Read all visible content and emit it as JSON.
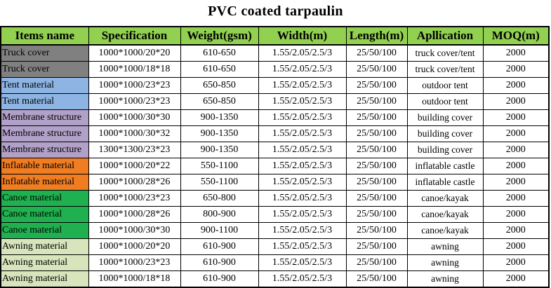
{
  "title": "PVC coated tarpaulin",
  "columns": [
    "Items name",
    "Specification",
    "Weight(gsm)",
    "Width(m)",
    "Length(m)",
    "Apllication",
    "MOQ(m)"
  ],
  "category_colors": {
    "truck": "#808080",
    "tent": "#8db4e2",
    "membrane": "#b1a0c7",
    "inflatable": "#f07d22",
    "canoe": "#1fb14f",
    "awning": "#d8e4bc",
    "header": "#92d050"
  },
  "rows": [
    {
      "item": "Truck cover",
      "category": "truck",
      "spec": "1000*1000/20*20",
      "weight": "610-650",
      "width": "1.55/2.05/2.5/3",
      "length": "25/50/100",
      "application": "truck cover/tent",
      "moq": "2000"
    },
    {
      "item": "Truck cover",
      "category": "truck",
      "spec": "1000*1000/18*18",
      "weight": "610-650",
      "width": "1.55/2.05/2.5/3",
      "length": "25/50/100",
      "application": "truck cover/tent",
      "moq": "2000"
    },
    {
      "item": "Tent material",
      "category": "tent",
      "spec": "1000*1000/23*23",
      "weight": "650-850",
      "width": "1.55/2.05/2.5/3",
      "length": "25/50/100",
      "application": "outdoor tent",
      "moq": "2000"
    },
    {
      "item": "Tent material",
      "category": "tent",
      "spec": "1000*1000/23*23",
      "weight": "650-850",
      "width": "1.55/2.05/2.5/3",
      "length": "25/50/100",
      "application": "outdoor tent",
      "moq": "2000"
    },
    {
      "item": "Membrane structure",
      "category": "membrane",
      "spec": "1000*1000/30*30",
      "weight": "900-1350",
      "width": "1.55/2.05/2.5/3",
      "length": "25/50/100",
      "application": "building cover",
      "moq": "2000"
    },
    {
      "item": "Membrane structure",
      "category": "membrane",
      "spec": "1000*1000/30*32",
      "weight": "900-1350",
      "width": "1.55/2.05/2.5/3",
      "length": "25/50/100",
      "application": "building cover",
      "moq": "2000"
    },
    {
      "item": "Membrane structure",
      "category": "membrane",
      "spec": "1300*1300/23*23",
      "weight": "900-1350",
      "width": "1.55/2.05/2.5/3",
      "length": "25/50/100",
      "application": "building cover",
      "moq": "2000"
    },
    {
      "item": "Inflatable material",
      "category": "inflatable",
      "spec": "1000*1000/20*22",
      "weight": "550-1100",
      "width": "1.55/2.05/2.5/3",
      "length": "25/50/100",
      "application": "inflatable castle",
      "moq": "2000"
    },
    {
      "item": "Inflatable material",
      "category": "inflatable",
      "spec": "1000*1000/28*26",
      "weight": "550-1100",
      "width": "1.55/2.05/2.5/3",
      "length": "25/50/100",
      "application": "inflatable castle",
      "moq": "2000"
    },
    {
      "item": "Canoe material",
      "category": "canoe",
      "spec": "1000*1000/23*23",
      "weight": "650-800",
      "width": "1.55/2.05/2.5/3",
      "length": "25/50/100",
      "application": "canoe/kayak",
      "moq": "2000"
    },
    {
      "item": "Canoe material",
      "category": "canoe",
      "spec": "1000*1000/28*26",
      "weight": "800-900",
      "width": "1.55/2.05/2.5/3",
      "length": "25/50/100",
      "application": "canoe/kayak",
      "moq": "2000"
    },
    {
      "item": "Canoe material",
      "category": "canoe",
      "spec": "1000*1000/30*30",
      "weight": "900-1100",
      "width": "1.55/2.05/2.5/3",
      "length": "25/50/100",
      "application": "canoe/kayak",
      "moq": "2000"
    },
    {
      "item": "Awning material",
      "category": "awning",
      "spec": "1000*1000/20*20",
      "weight": "610-900",
      "width": "1.55/2.05/2.5/3",
      "length": "25/50/100",
      "application": "awning",
      "moq": "2000"
    },
    {
      "item": "Awning material",
      "category": "awning",
      "spec": "1000*1000/23*23",
      "weight": "610-900",
      "width": "1.55/2.05/2.5/3",
      "length": "25/50/100",
      "application": "awning",
      "moq": "2000"
    },
    {
      "item": "Awning material",
      "category": "awning",
      "spec": "1000*1000/18*18",
      "weight": "610-900",
      "width": "1.55/2.05/2.5/3",
      "length": "25/50/100",
      "application": "awning",
      "moq": "2000"
    }
  ]
}
